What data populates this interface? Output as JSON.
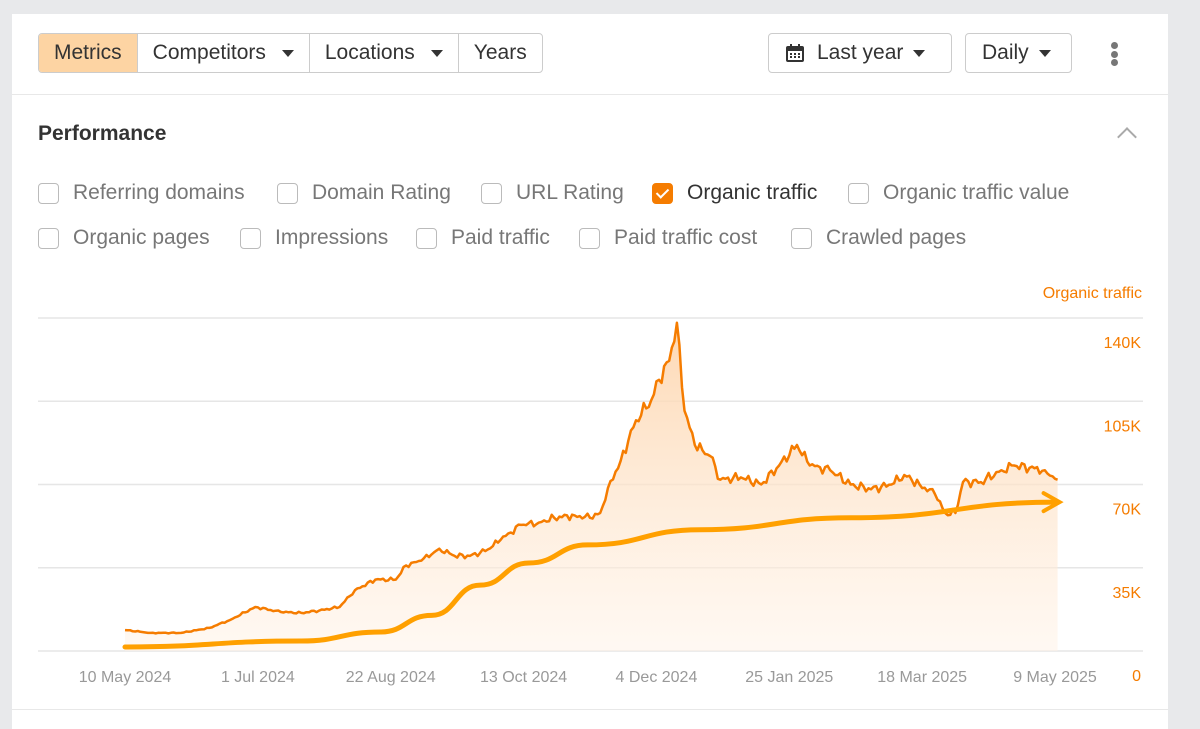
{
  "toolbar": {
    "tabs": [
      "Metrics",
      "Competitors",
      "Locations",
      "Years"
    ],
    "date_range": "Last year",
    "granularity": "Daily"
  },
  "section": {
    "title": "Performance"
  },
  "metrics": [
    {
      "label": "Referring domains",
      "checked": false
    },
    {
      "label": "Domain Rating",
      "checked": false
    },
    {
      "label": "URL Rating",
      "checked": false
    },
    {
      "label": "Organic traffic",
      "checked": true
    },
    {
      "label": "Organic traffic value",
      "checked": false
    },
    {
      "label": "Organic pages",
      "checked": false
    },
    {
      "label": "Impressions",
      "checked": false
    },
    {
      "label": "Paid traffic",
      "checked": false
    },
    {
      "label": "Paid traffic cost",
      "checked": false
    },
    {
      "label": "Crawled pages",
      "checked": false
    }
  ],
  "colors": {
    "accent": "#f57c00",
    "trend": "#ffa000"
  },
  "chart_data": {
    "type": "area",
    "series_label": "Organic traffic",
    "ylim": [
      0,
      140000
    ],
    "yticks": [
      "0",
      "35K",
      "70K",
      "105K",
      "140K"
    ],
    "xticks": [
      {
        "day": 0,
        "label": "10 May 2024"
      },
      {
        "day": 52,
        "label": "1 Jul 2024"
      },
      {
        "day": 104,
        "label": "22 Aug 2024"
      },
      {
        "day": 156,
        "label": "13 Oct 2024"
      },
      {
        "day": 208,
        "label": "4 Dec 2024"
      },
      {
        "day": 260,
        "label": "25 Jan 2025"
      },
      {
        "day": 312,
        "label": "18 Mar 2025"
      },
      {
        "day": 364,
        "label": "9 May 2025"
      }
    ],
    "series": [
      {
        "name": "Organic traffic",
        "unit": "K",
        "days": [
          0,
          10,
          22,
          33,
          41,
          51,
          61,
          69,
          76,
          84,
          90,
          98,
          106,
          110,
          116,
          123,
          129,
          135,
          141,
          147,
          155,
          162,
          168,
          176,
          182,
          186,
          189,
          194,
          200,
          206,
          209,
          213,
          216,
          219,
          223,
          229,
          233,
          241,
          249,
          256,
          263,
          268,
          276,
          284,
          292,
          300,
          305,
          311,
          317,
          321,
          325,
          328,
          335,
          343,
          348,
          354,
          360,
          365
        ],
        "values": [
          8.8,
          7.6,
          7.6,
          9.7,
          13,
          18.5,
          16.4,
          16,
          17,
          18.5,
          25.6,
          30,
          30,
          36,
          38,
          43,
          40,
          40,
          42,
          46.7,
          53,
          54,
          56,
          57,
          56,
          58,
          68.5,
          80,
          97,
          105.5,
          114,
          122,
          138,
          101,
          86.6,
          82,
          72,
          73,
          70,
          78,
          86.6,
          78,
          76,
          70,
          68,
          70,
          74,
          70,
          66,
          58,
          58,
          71,
          71,
          76,
          78,
          77,
          76,
          72
        ]
      }
    ],
    "trend": {
      "days": [
        0,
        69,
        100,
        120,
        139,
        158,
        181,
        225,
        284,
        365
      ],
      "values": [
        1.7,
        4.2,
        8,
        15,
        27.7,
        37,
        44.6,
        51,
        56,
        62.6
      ]
    }
  }
}
